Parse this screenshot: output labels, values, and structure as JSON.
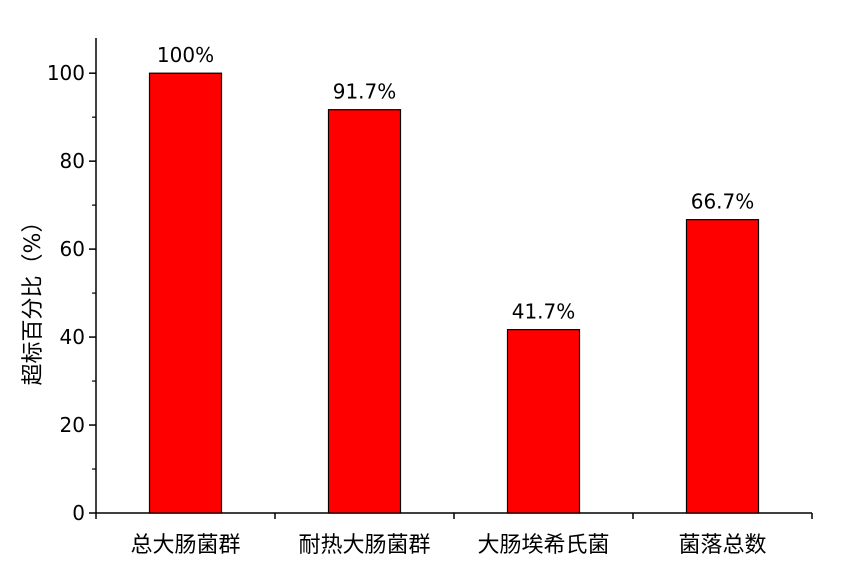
{
  "chart_data": {
    "type": "bar",
    "categories": [
      "总大肠菌群",
      "耐热大肠菌群",
      "大肠埃希氏菌",
      "菌落总数"
    ],
    "values": [
      100,
      91.7,
      41.7,
      66.7
    ],
    "data_labels": [
      "100%",
      "91.7%",
      "41.7%",
      "66.7%"
    ],
    "title": "",
    "xlabel": "",
    "ylabel": "超标百分比（%）",
    "ylim": [
      0,
      108
    ],
    "y_ticks": [
      0,
      20,
      40,
      60,
      80,
      100
    ],
    "y_tick_labels": [
      "0",
      "20",
      "40",
      "60",
      "80",
      "100"
    ],
    "grid": false,
    "legend": "none",
    "bar_color": "#ff0000",
    "bar_edge_color": "#000000"
  }
}
